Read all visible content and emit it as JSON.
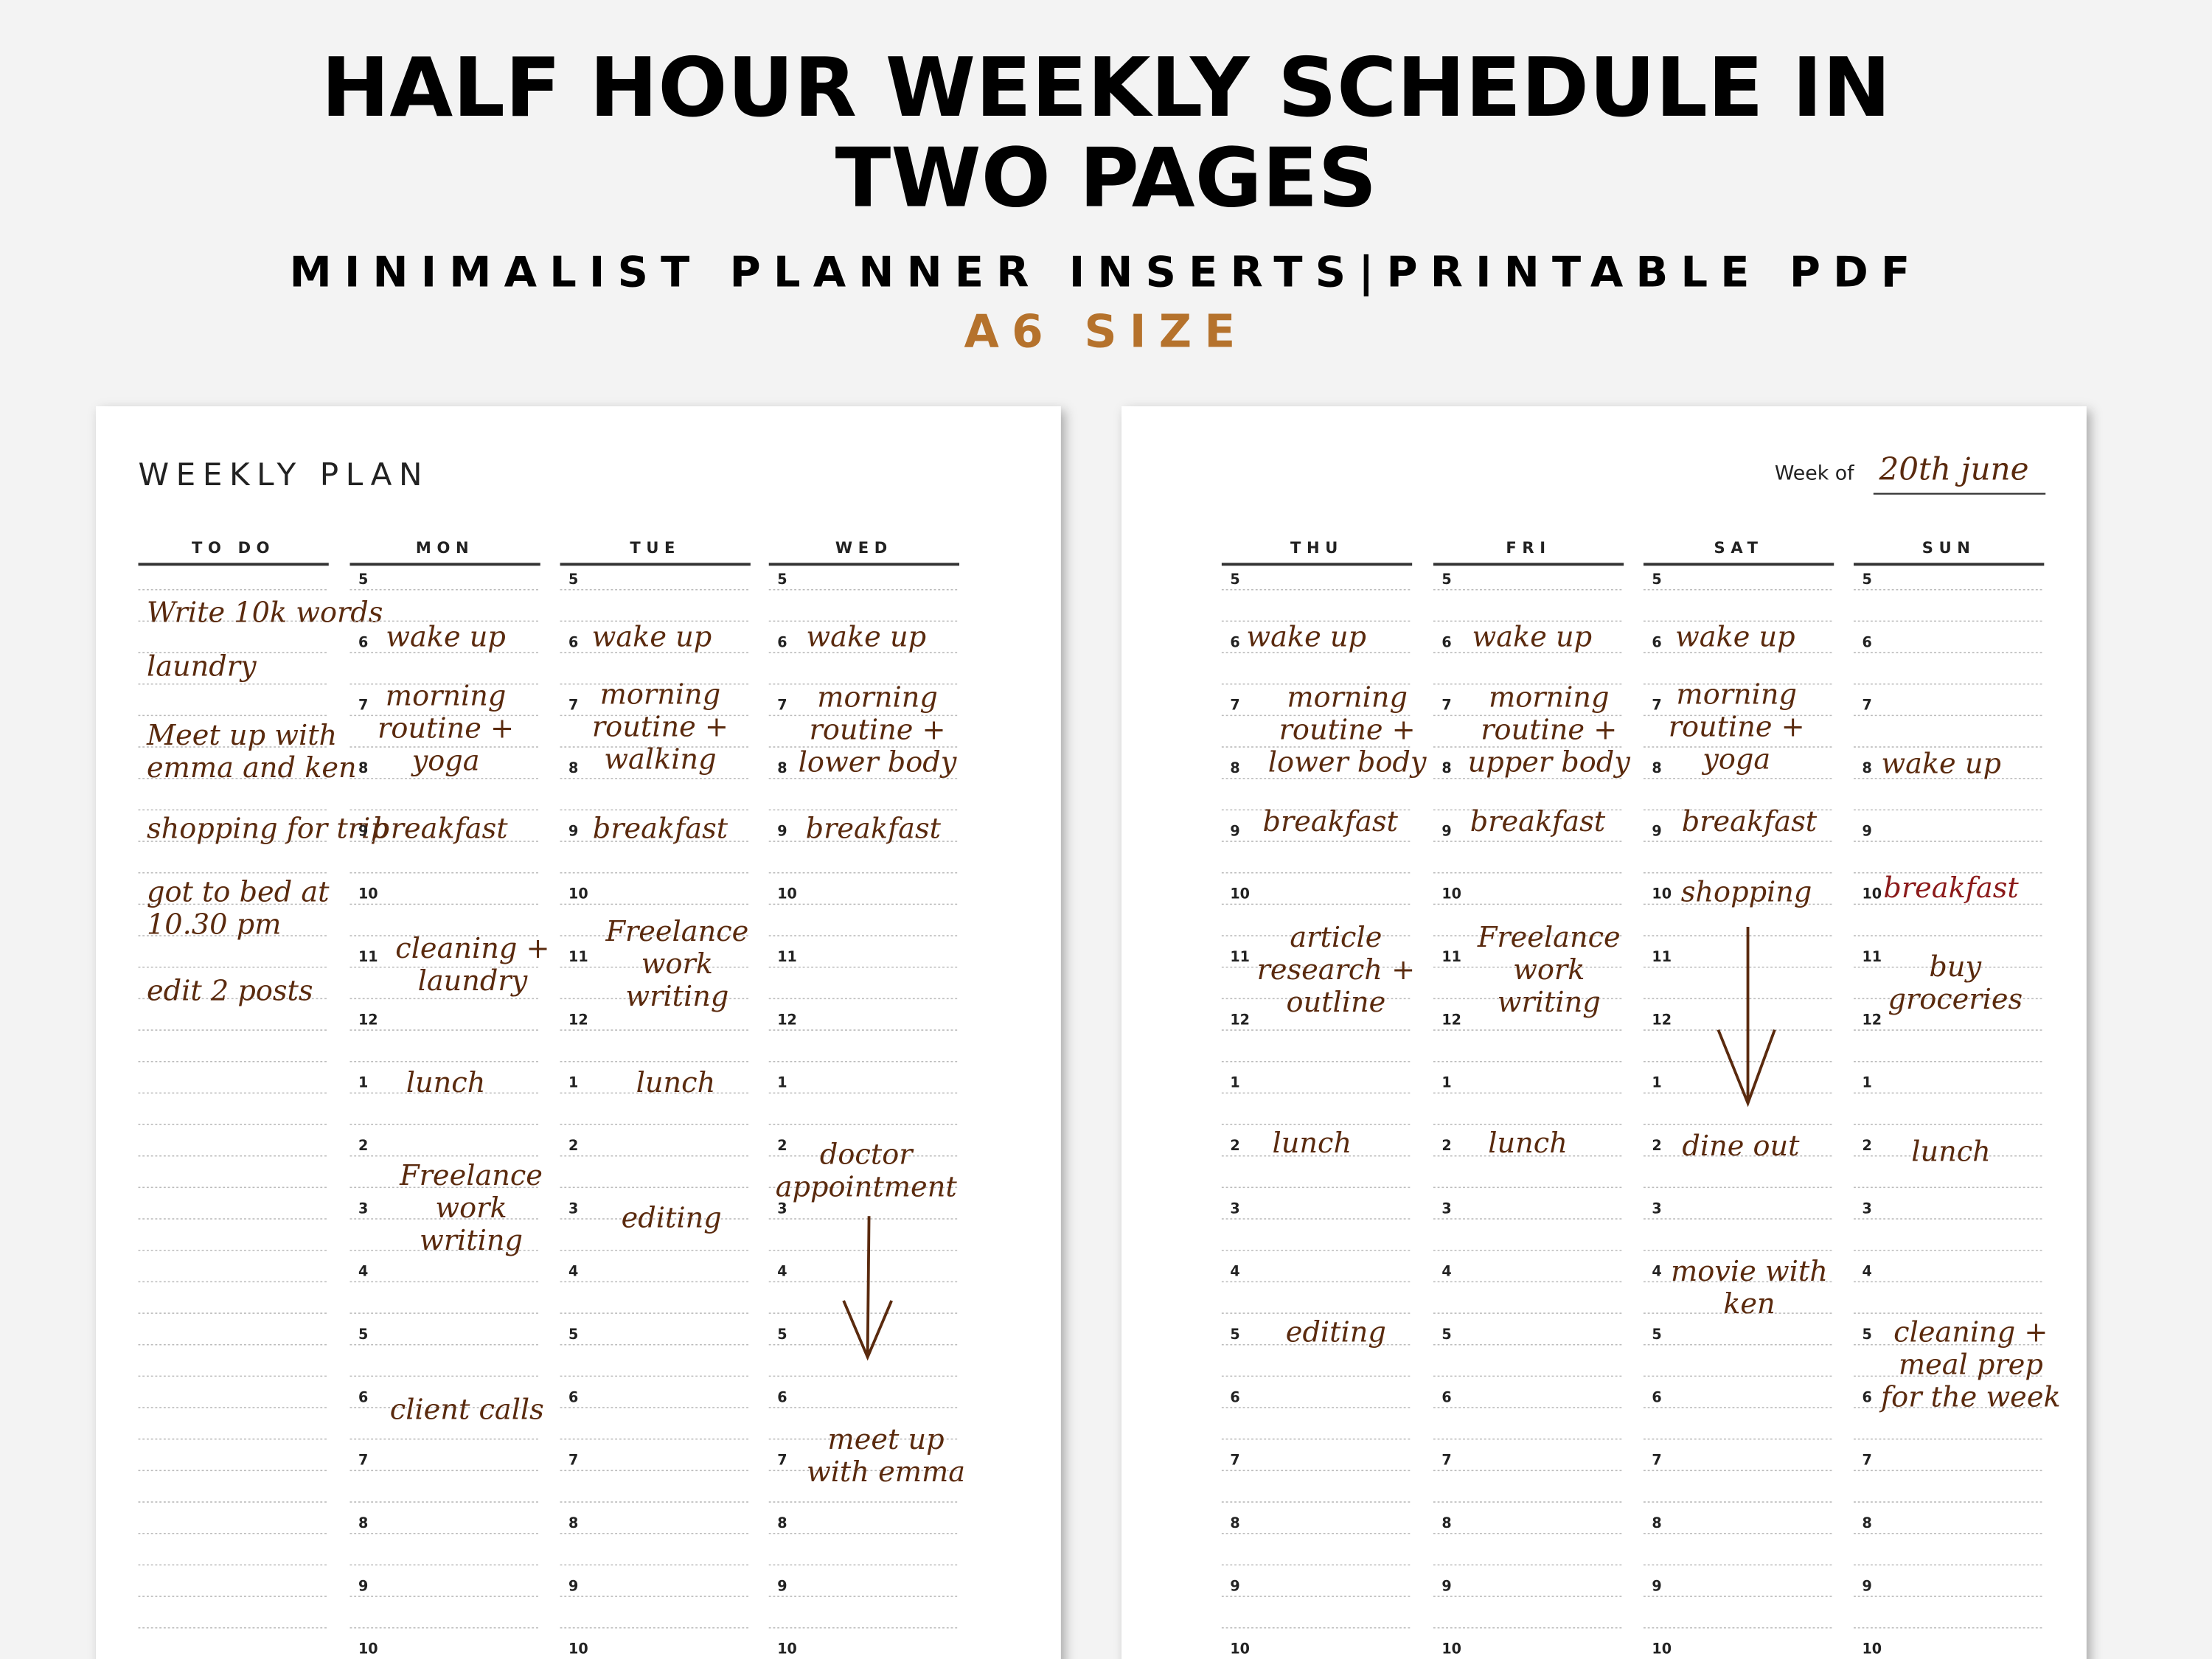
{
  "header": {
    "title_lines": [
      "HALF HOUR WEEKLY SCHEDULE IN",
      "TWO PAGES"
    ],
    "subtitle": "MINIMALIST PLANNER INSERTS|PRINTABLE PDF",
    "size": "A6 SIZE"
  },
  "left_page": {
    "title": "WEEKLY PLAN"
  },
  "right_page": {
    "week_of_label": "Week of",
    "week_of_value": "20th june"
  },
  "todo": {
    "title": "TO DO",
    "items": [
      [
        "Write 10k words"
      ],
      [
        "laundry"
      ],
      [
        "Meet up with",
        "emma and ken"
      ],
      [
        "shopping for trip"
      ],
      [
        "got to bed at",
        "10.30 pm"
      ],
      [
        "edit 2 posts"
      ]
    ]
  },
  "hours": [
    5,
    6,
    7,
    8,
    9,
    10,
    11,
    12,
    1,
    2,
    3,
    4,
    5,
    6,
    7,
    8,
    9,
    10
  ],
  "days": [
    {
      "name": "MON",
      "entries": [
        [
          "wake up"
        ],
        [
          "morning",
          "routine +",
          "yoga"
        ],
        [
          "breakfast"
        ],
        [
          "cleaning +",
          "laundry"
        ],
        [
          "lunch"
        ],
        [
          "Freelance",
          "work",
          "writing"
        ],
        [
          "client calls"
        ]
      ]
    },
    {
      "name": "TUE",
      "entries": [
        [
          "wake up"
        ],
        [
          "morning",
          "routine +",
          "walking"
        ],
        [
          "breakfast"
        ],
        [
          "Freelance",
          "work",
          "writing"
        ],
        [
          "lunch"
        ],
        [
          "editing"
        ]
      ]
    },
    {
      "name": "WED",
      "entries": [
        [
          "wake up"
        ],
        [
          "morning",
          "routine +",
          "lower body"
        ],
        [
          "breakfast"
        ],
        [
          "doctor",
          "appointment"
        ],
        [
          "meet up",
          "with emma"
        ]
      ]
    },
    {
      "name": "THU",
      "entries": [
        [
          "wake up"
        ],
        [
          "morning",
          "routine +",
          "lower body"
        ],
        [
          "breakfast"
        ],
        [
          "article",
          "research +",
          "outline"
        ],
        [
          "lunch"
        ],
        [
          "editing"
        ]
      ]
    },
    {
      "name": "FRI",
      "entries": [
        [
          "wake up"
        ],
        [
          "morning",
          "routine +",
          "upper body"
        ],
        [
          "breakfast"
        ],
        [
          "Freelance",
          "work",
          "writing"
        ],
        [
          "lunch"
        ]
      ]
    },
    {
      "name": "SAT",
      "entries": [
        [
          "wake up"
        ],
        [
          "morning",
          "routine +",
          "yoga"
        ],
        [
          "breakfast"
        ],
        [
          "shopping"
        ],
        [
          "dine out"
        ],
        [
          "movie with",
          "ken"
        ]
      ]
    },
    {
      "name": "SUN",
      "entries": [
        [
          "wake up"
        ],
        [
          "breakfast"
        ],
        [
          "buy",
          "groceries"
        ],
        [
          "lunch"
        ],
        [
          "cleaning +",
          "meal prep",
          "for the week"
        ]
      ]
    }
  ]
}
